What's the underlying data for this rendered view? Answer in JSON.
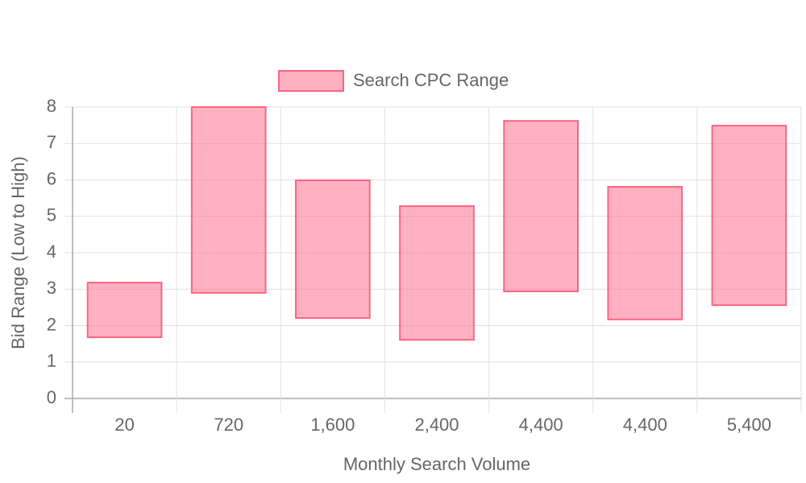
{
  "chart_data": {
    "type": "floating-bar",
    "x_label": "Monthly Search Volume",
    "y_label": "Bid Range (Low to High)",
    "categories": [
      "20",
      "720",
      "1,600",
      "2,400",
      "4,400",
      "4,400",
      "5,400"
    ],
    "series": [
      {
        "name": "Search CPC Range",
        "color": "#ff6384",
        "low": [
          1.68,
          2.9,
          2.21,
          1.61,
          2.94,
          2.17,
          2.56
        ],
        "high": [
          3.18,
          8.0,
          5.99,
          5.28,
          7.62,
          5.81,
          7.49
        ]
      }
    ],
    "ylim": [
      0,
      8
    ],
    "yticks": [
      0,
      1,
      2,
      3,
      4,
      5,
      6,
      7,
      8
    ],
    "grid": true,
    "legend": "top"
  }
}
